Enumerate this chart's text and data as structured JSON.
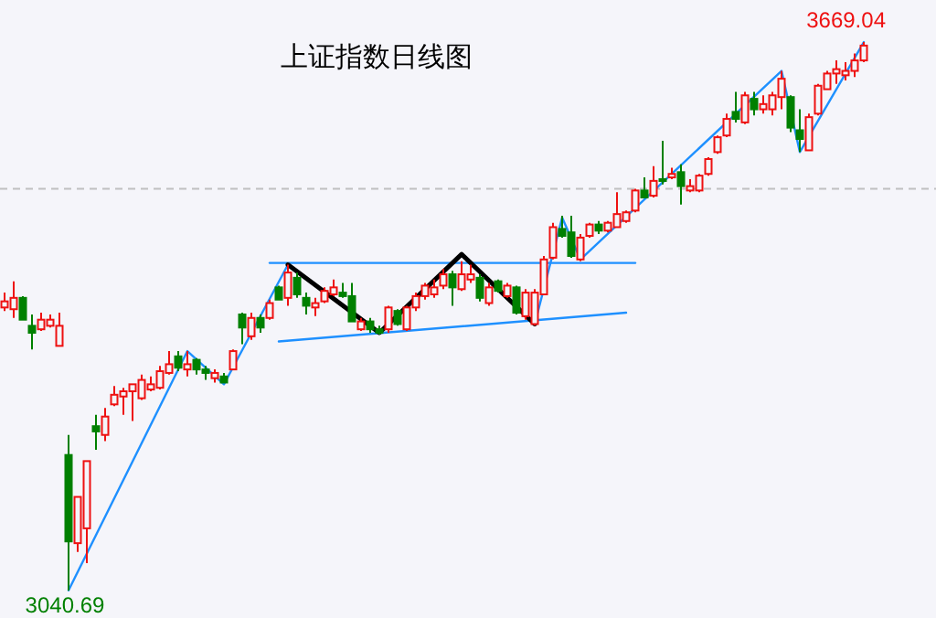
{
  "chart_data": {
    "type": "candlestick",
    "title": "上证指数日线图",
    "tick_labels": false,
    "categories": [
      null,
      null,
      null,
      null,
      null,
      null,
      null,
      null,
      null,
      null,
      null,
      null,
      null,
      null,
      null,
      null,
      null,
      null,
      null,
      null,
      null,
      null,
      null,
      null,
      null,
      null,
      null,
      null,
      null,
      null,
      null,
      null,
      null,
      null,
      null,
      null,
      null,
      null,
      null,
      null,
      null,
      null,
      null,
      null,
      null,
      null,
      null,
      null,
      null,
      null,
      null,
      null,
      null,
      null,
      null,
      null,
      null,
      null,
      null,
      null,
      null,
      null,
      null,
      null,
      null,
      null,
      null,
      null,
      null,
      null,
      null,
      null,
      null,
      null,
      null,
      null,
      null,
      null,
      null,
      null,
      null,
      null,
      null,
      null,
      null,
      null,
      null,
      null,
      null,
      null,
      null,
      null,
      null,
      null,
      null
    ],
    "ohlc": [
      [
        3365,
        3382,
        3361,
        3372
      ],
      [
        3363,
        3395,
        3353,
        3376
      ],
      [
        3376,
        3378,
        3351,
        3351
      ],
      [
        3344,
        3357,
        3317,
        3336
      ],
      [
        3340,
        3359,
        3338,
        3351
      ],
      [
        3344,
        3357,
        3342,
        3351
      ],
      [
        3321,
        3359,
        3321,
        3344
      ],
      [
        3196,
        3219,
        3040.69,
        3097
      ],
      [
        3095,
        3148,
        3085,
        3148
      ],
      [
        3112,
        3189,
        3072,
        3189
      ],
      [
        3229,
        3242,
        3202,
        3223
      ],
      [
        3219,
        3250,
        3212,
        3240
      ],
      [
        3254,
        3275,
        3252,
        3265
      ],
      [
        3263,
        3273,
        3242,
        3269
      ],
      [
        3269,
        3277,
        3235,
        3277
      ],
      [
        3261,
        3288,
        3259,
        3282
      ],
      [
        3271,
        3286,
        3269,
        3277
      ],
      [
        3273,
        3298,
        3271,
        3292
      ],
      [
        3290,
        3315,
        3288,
        3300
      ],
      [
        3309,
        3315,
        3292,
        3296
      ],
      [
        3294,
        3315,
        3286,
        3300
      ],
      [
        3305,
        3307,
        3288,
        3294
      ],
      [
        3294,
        3298,
        3282,
        3290
      ],
      [
        3284,
        3294,
        3279,
        3290
      ],
      [
        3286,
        3290,
        3279,
        3279
      ],
      [
        3294,
        3317,
        3294,
        3315
      ],
      [
        3357,
        3359,
        3323,
        3342
      ],
      [
        3332,
        3359,
        3328,
        3353
      ],
      [
        3353,
        3357,
        3336,
        3342
      ],
      [
        3353,
        3374,
        3351,
        3370
      ],
      [
        3388,
        3390,
        3374,
        3374
      ],
      [
        3376,
        3414,
        3367,
        3405
      ],
      [
        3399,
        3405,
        3376,
        3380
      ],
      [
        3376,
        3382,
        3357,
        3367
      ],
      [
        3365,
        3376,
        3355,
        3370
      ],
      [
        3372,
        3388,
        3370,
        3384
      ],
      [
        3380,
        3397,
        3378,
        3388
      ],
      [
        3382,
        3393,
        3376,
        3378
      ],
      [
        3378,
        3393,
        3349,
        3349
      ],
      [
        3340,
        3353,
        3338,
        3349
      ],
      [
        3349,
        3353,
        3336,
        3340
      ],
      [
        3340,
        3344,
        3334,
        3336
      ],
      [
        3340,
        3367,
        3336,
        3365
      ],
      [
        3361,
        3363,
        3344,
        3346
      ],
      [
        3340,
        3367,
        3338,
        3365
      ],
      [
        3365,
        3382,
        3361,
        3378
      ],
      [
        3378,
        3393,
        3374,
        3390
      ],
      [
        3380,
        3397,
        3376,
        3388
      ],
      [
        3390,
        3409,
        3386,
        3403
      ],
      [
        3403,
        3407,
        3367,
        3388
      ],
      [
        3386,
        3418,
        3384,
        3403
      ],
      [
        3397,
        3414,
        3393,
        3403
      ],
      [
        3399,
        3403,
        3372,
        3376
      ],
      [
        3370,
        3393,
        3367,
        3388
      ],
      [
        3395,
        3397,
        3382,
        3384
      ],
      [
        3378,
        3393,
        3376,
        3390
      ],
      [
        3388,
        3390,
        3357,
        3359
      ],
      [
        3355,
        3386,
        3351,
        3382
      ],
      [
        3346,
        3386,
        3344,
        3382
      ],
      [
        3380,
        3424,
        3380,
        3420
      ],
      [
        3422,
        3462,
        3420,
        3457
      ],
      [
        3455,
        3470,
        3445,
        3447
      ],
      [
        3451,
        3470,
        3422,
        3424
      ],
      [
        3420,
        3449,
        3418,
        3445
      ],
      [
        3447,
        3462,
        3445,
        3460
      ],
      [
        3460,
        3464,
        3449,
        3453
      ],
      [
        3453,
        3464,
        3451,
        3462
      ],
      [
        3457,
        3497,
        3457,
        3472
      ],
      [
        3464,
        3476,
        3462,
        3474
      ],
      [
        3476,
        3501,
        3474,
        3499
      ],
      [
        3499,
        3514,
        3491,
        3491
      ],
      [
        3493,
        3527,
        3491,
        3510
      ],
      [
        3512,
        3556,
        3506,
        3510
      ],
      [
        3514,
        3525,
        3512,
        3518
      ],
      [
        3520,
        3529,
        3483,
        3504
      ],
      [
        3499,
        3512,
        3497,
        3504
      ],
      [
        3499,
        3518,
        3497,
        3516
      ],
      [
        3518,
        3537,
        3516,
        3535
      ],
      [
        3543,
        3562,
        3541,
        3560
      ],
      [
        3562,
        3587,
        3560,
        3581
      ],
      [
        3589,
        3612,
        3577,
        3581
      ],
      [
        3577,
        3612,
        3575,
        3608
      ],
      [
        3604,
        3612,
        3585,
        3592
      ],
      [
        3592,
        3608,
        3587,
        3598
      ],
      [
        3592,
        3612,
        3585,
        3608
      ],
      [
        3606,
        3636,
        3592,
        3627
      ],
      [
        3606,
        3608,
        3566,
        3571
      ],
      [
        3568,
        3592,
        3543,
        3558
      ],
      [
        3545,
        3587,
        3545,
        3583
      ],
      [
        3587,
        3621,
        3585,
        3619
      ],
      [
        3615,
        3636,
        3615,
        3633
      ],
      [
        3633,
        3648,
        3621,
        3638
      ],
      [
        3631,
        3646,
        3625,
        3636
      ],
      [
        3636,
        3656,
        3629,
        3648
      ],
      [
        3648,
        3669.04,
        3646,
        3665
      ]
    ],
    "series": [
      {
        "type": "line",
        "color": "#1e90ff",
        "values": [
          null,
          null,
          null,
          null,
          null,
          null,
          null,
          3041,
          null,
          null,
          null,
          null,
          null,
          null,
          null,
          null,
          null,
          null,
          null,
          null,
          3315,
          null,
          null,
          null,
          3277,
          null,
          null,
          null,
          null,
          null,
          null,
          3414,
          null,
          null,
          null,
          null,
          null,
          null,
          null,
          null,
          null,
          null,
          null,
          null,
          null,
          null,
          null,
          null,
          null,
          null,
          null,
          null,
          null,
          null,
          null,
          null,
          null,
          null,
          null,
          null,
          null,
          null,
          null,
          null,
          null,
          null,
          null,
          null,
          null,
          null,
          null,
          null,
          null,
          null,
          null,
          null,
          null,
          null,
          null,
          null,
          null,
          null,
          null,
          null,
          null,
          null,
          null,
          null,
          null,
          null,
          null,
          null,
          null,
          null,
          null
        ]
      },
      {
        "type": "line",
        "color": "#1e90ff",
        "values": [
          null,
          null,
          null,
          null,
          null,
          null,
          null,
          null,
          null,
          null,
          null,
          null,
          null,
          null,
          null,
          null,
          null,
          null,
          null,
          null,
          null,
          null,
          null,
          null,
          null,
          null,
          null,
          null,
          null,
          3416,
          null,
          null,
          null,
          null,
          null,
          null,
          null,
          null,
          null,
          null,
          null,
          null,
          null,
          null,
          null,
          null,
          null,
          null,
          null,
          null,
          null,
          null,
          null,
          null,
          null,
          null,
          null,
          null,
          null,
          null,
          null,
          null,
          null,
          null,
          null,
          null,
          null,
          null,
          null,
          3416,
          null,
          null,
          null,
          null,
          null,
          null,
          null,
          null,
          null,
          null,
          null,
          null,
          null,
          null,
          null,
          null,
          null,
          null,
          null,
          null,
          null,
          null,
          null,
          null,
          null
        ]
      },
      {
        "type": "line",
        "color": "#1e90ff",
        "values": [
          null,
          null,
          null,
          null,
          null,
          null,
          null,
          null,
          null,
          null,
          null,
          null,
          null,
          null,
          null,
          null,
          null,
          null,
          null,
          null,
          null,
          null,
          null,
          null,
          null,
          null,
          null,
          null,
          null,
          null,
          3326,
          null,
          null,
          null,
          null,
          null,
          null,
          null,
          null,
          null,
          null,
          null,
          null,
          null,
          null,
          null,
          null,
          null,
          null,
          null,
          null,
          null,
          null,
          null,
          null,
          null,
          null,
          null,
          null,
          null,
          null,
          null,
          null,
          null,
          null,
          null,
          null,
          null,
          3359,
          null,
          null,
          null,
          null,
          null,
          null,
          null,
          null,
          null,
          null,
          null,
          null,
          null,
          null,
          null,
          null,
          null,
          null,
          null,
          null,
          null,
          null,
          null,
          null,
          null,
          null
        ]
      },
      {
        "type": "line",
        "color": "#1e90ff",
        "values": [
          null,
          null,
          null,
          null,
          null,
          null,
          null,
          null,
          null,
          null,
          null,
          null,
          null,
          null,
          null,
          null,
          null,
          null,
          null,
          null,
          null,
          null,
          null,
          null,
          null,
          null,
          null,
          null,
          null,
          null,
          null,
          null,
          null,
          null,
          null,
          null,
          null,
          null,
          null,
          null,
          null,
          null,
          null,
          null,
          null,
          null,
          null,
          null,
          null,
          null,
          null,
          null,
          null,
          null,
          null,
          null,
          null,
          null,
          3346,
          null,
          null,
          3468,
          null,
          3420,
          null,
          null,
          null,
          null,
          null,
          null,
          null,
          null,
          null,
          null,
          null,
          null,
          null,
          null,
          null,
          null,
          null,
          null,
          null,
          null,
          null,
          3636,
          null,
          3543,
          null,
          null,
          null,
          null,
          null,
          null,
          3669
        ]
      },
      {
        "type": "line",
        "color": "#000000",
        "values": [
          null,
          null,
          null,
          null,
          null,
          null,
          null,
          null,
          null,
          null,
          null,
          null,
          null,
          null,
          null,
          null,
          null,
          null,
          null,
          null,
          null,
          null,
          null,
          null,
          null,
          null,
          null,
          null,
          null,
          null,
          null,
          3414,
          null,
          null,
          null,
          null,
          null,
          null,
          null,
          null,
          null,
          3336,
          null,
          null,
          null,
          null,
          null,
          null,
          null,
          null,
          3426,
          null,
          null,
          null,
          null,
          null,
          null,
          null,
          3346,
          null,
          null,
          null,
          null,
          null,
          null,
          null,
          null,
          null,
          null,
          null,
          null,
          null,
          null,
          null,
          null,
          null,
          null,
          null,
          null,
          null,
          null,
          null,
          null,
          null,
          null,
          null,
          null,
          null,
          null,
          null,
          null,
          null,
          null,
          null,
          null
        ]
      }
    ],
    "ref_lines": [
      {
        "axis": "y",
        "value": 3501,
        "color": "#c0c0c0",
        "line_style": "dashed"
      }
    ],
    "annotations": [
      "3669.04",
      "3040.69"
    ]
  }
}
